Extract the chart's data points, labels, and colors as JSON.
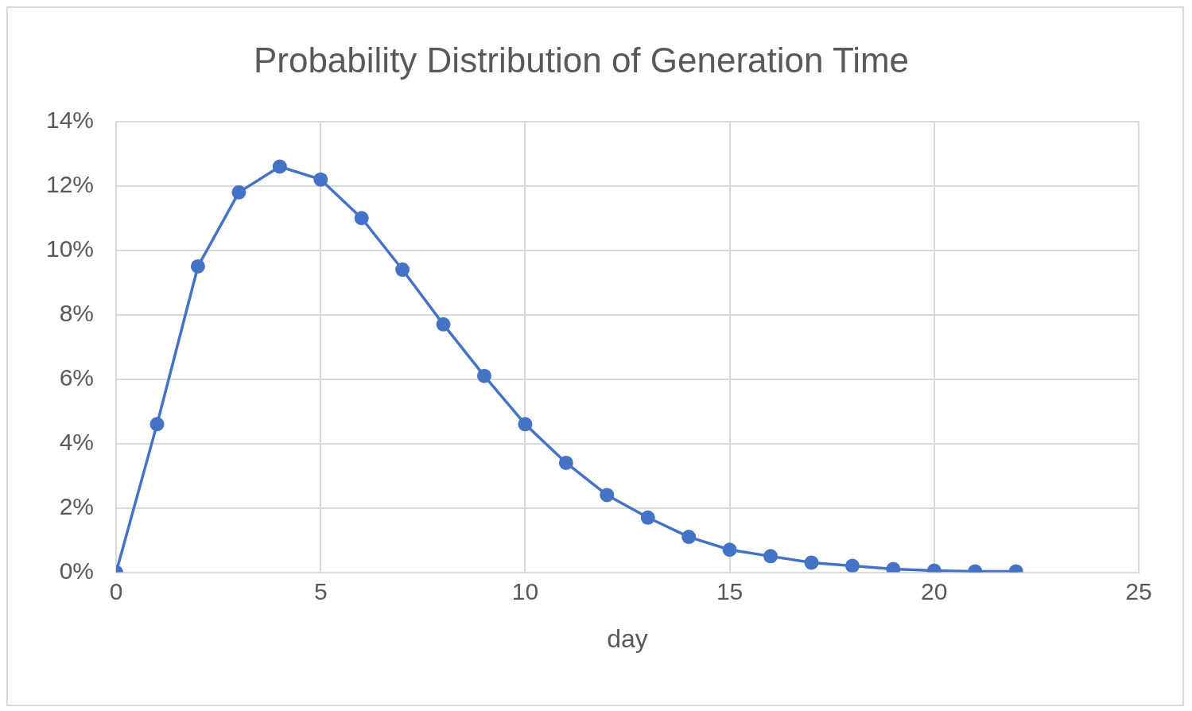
{
  "chart_data": {
    "type": "line",
    "title": "Probability Distribution of Generation Time",
    "xlabel": "day",
    "x": [
      0,
      1,
      2,
      3,
      4,
      5,
      6,
      7,
      8,
      9,
      10,
      11,
      12,
      13,
      14,
      15,
      16,
      17,
      18,
      19,
      20,
      21,
      22
    ],
    "series": [
      {
        "color": "#4472c4",
        "values": [
          0,
          4.6,
          9.5,
          11.8,
          12.6,
          12.2,
          11.0,
          9.4,
          7.7,
          6.1,
          4.6,
          3.4,
          2.4,
          1.7,
          1.1,
          0.7,
          0.5,
          0.3,
          0.2,
          0.1,
          0.05,
          0.03,
          0.03
        ]
      }
    ],
    "xlim": [
      0,
      25
    ],
    "xticks": [
      0,
      5,
      10,
      15,
      20,
      25
    ],
    "ylim": [
      0,
      14
    ],
    "yticks": [
      {
        "value": 0,
        "label": "0%"
      },
      {
        "value": 2,
        "label": "2%"
      },
      {
        "value": 4,
        "label": "4%"
      },
      {
        "value": 6,
        "label": "6%"
      },
      {
        "value": 8,
        "label": "8%"
      },
      {
        "value": 10,
        "label": "10%"
      },
      {
        "value": 12,
        "label": "12%"
      },
      {
        "value": 14,
        "label": "14%"
      }
    ],
    "grid": true,
    "legend": false,
    "marker": "circle",
    "line_style": "solid"
  }
}
